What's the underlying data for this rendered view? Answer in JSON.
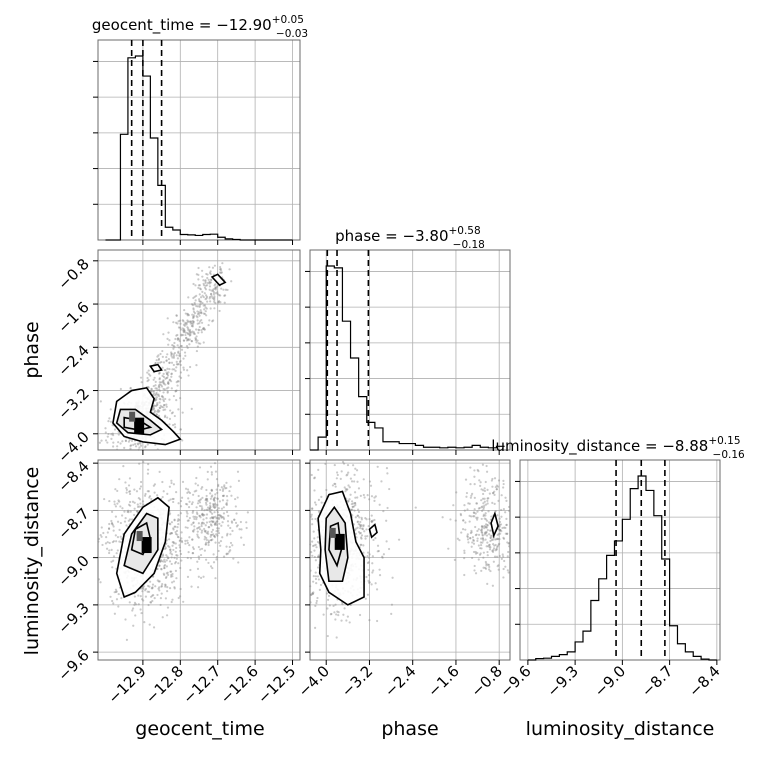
{
  "chart_data": {
    "type": "corner",
    "parameters": [
      "geocent_time",
      "phase",
      "luminosity_distance"
    ],
    "titles": [
      {
        "param": "geocent_time",
        "median": "−12.90",
        "plus": "+0.05",
        "minus": "−0.03"
      },
      {
        "param": "phase",
        "median": "−3.80",
        "plus": "+0.58",
        "minus": "−0.18"
      },
      {
        "param": "luminosity_distance",
        "median": "−8.88",
        "plus": "+0.15",
        "minus": "−0.16"
      }
    ],
    "axes": {
      "geocent_time": {
        "range": [
          -13.02,
          -12.48
        ],
        "ticks": [
          -12.9,
          -12.8,
          -12.7,
          -12.6,
          -12.5
        ],
        "tick_labels": [
          "−12.9",
          "−12.8",
          "−12.7",
          "−12.6",
          "−12.5"
        ]
      },
      "phase": {
        "range": [
          -4.3,
          -0.6
        ],
        "ticks": [
          -4.0,
          -3.2,
          -2.4,
          -1.6,
          -0.8
        ],
        "tick_labels": [
          "−4.0",
          "−3.2",
          "−2.4",
          "−1.6",
          "−0.8"
        ]
      },
      "luminosity_distance": {
        "range": [
          -9.65,
          -8.38
        ],
        "ticks": [
          -9.6,
          -9.3,
          -9.0,
          -8.7,
          -8.4
        ],
        "tick_labels": [
          "−9.6",
          "−9.3",
          "−9.0",
          "−8.7",
          "−8.4"
        ]
      }
    },
    "quantiles": {
      "geocent_time": [
        -12.93,
        -12.9,
        -12.85
      ],
      "phase": [
        -3.98,
        -3.8,
        -3.22
      ],
      "luminosity_distance": [
        -9.04,
        -8.88,
        -8.73
      ]
    },
    "histograms": {
      "geocent_time": {
        "edges": [
          -13.0,
          -12.98,
          -12.96,
          -12.94,
          -12.92,
          -12.9,
          -12.88,
          -12.86,
          -12.84,
          -12.82,
          -12.8,
          -12.78,
          -12.76,
          -12.74,
          -12.72,
          -12.7,
          -12.68,
          -12.66,
          -12.64,
          -12.62,
          -12.6,
          -12.58,
          -12.56,
          -12.54,
          -12.52,
          -12.5
        ],
        "counts": [
          0,
          0,
          580,
          1000,
          1010,
          900,
          560,
          300,
          70,
          55,
          30,
          28,
          25,
          30,
          32,
          15,
          6,
          3,
          0,
          0,
          0,
          0,
          0,
          0,
          0
        ]
      },
      "phase": {
        "edges": [
          -4.3,
          -4.15,
          -4.0,
          -3.85,
          -3.7,
          -3.55,
          -3.4,
          -3.25,
          -3.1,
          -2.95,
          -2.8,
          -2.65,
          -2.5,
          -2.35,
          -2.2,
          -2.05,
          -1.9,
          -1.75,
          -1.6,
          -1.45,
          -1.3,
          -1.15,
          -1.0,
          -0.85,
          -0.7
        ],
        "counts": [
          0,
          70,
          1000,
          990,
          700,
          500,
          290,
          150,
          120,
          45,
          45,
          35,
          35,
          25,
          15,
          15,
          12,
          15,
          12,
          15,
          25,
          15,
          12,
          20
        ]
      },
      "luminosity_distance": {
        "edges": [
          -9.6,
          -9.55,
          -9.5,
          -9.45,
          -9.4,
          -9.35,
          -9.3,
          -9.25,
          -9.2,
          -9.15,
          -9.1,
          -9.05,
          -9.0,
          -8.95,
          -8.9,
          -8.85,
          -8.8,
          -8.75,
          -8.7,
          -8.65,
          -8.6,
          -8.55,
          -8.5,
          -8.45,
          -8.4
        ],
        "counts": [
          0,
          8,
          10,
          20,
          30,
          45,
          100,
          160,
          330,
          450,
          580,
          660,
          780,
          950,
          1020,
          940,
          800,
          560,
          190,
          90,
          45,
          20,
          5,
          0
        ]
      }
    },
    "contours": {
      "phase_vs_geocent_time": [
        {
          "level": "outer",
          "points": [
            [
              -12.97,
              -3.4
            ],
            [
              -12.93,
              -3.2
            ],
            [
              -12.89,
              -3.15
            ],
            [
              -12.87,
              -3.35
            ],
            [
              -12.88,
              -3.6
            ],
            [
              -12.85,
              -3.75
            ],
            [
              -12.82,
              -3.95
            ],
            [
              -12.8,
              -4.1
            ],
            [
              -12.84,
              -4.2
            ],
            [
              -12.9,
              -4.15
            ],
            [
              -12.95,
              -4.05
            ],
            [
              -12.98,
              -3.8
            ]
          ]
        },
        {
          "level": "middle",
          "points": [
            [
              -12.96,
              -3.55
            ],
            [
              -12.92,
              -3.55
            ],
            [
              -12.88,
              -3.75
            ],
            [
              -12.85,
              -3.92
            ],
            [
              -12.88,
              -4.02
            ],
            [
              -12.94,
              -3.98
            ],
            [
              -12.97,
              -3.8
            ]
          ]
        },
        {
          "level": "inner",
          "points": [
            [
              -12.95,
              -3.7
            ],
            [
              -12.91,
              -3.75
            ],
            [
              -12.88,
              -3.88
            ],
            [
              -12.91,
              -3.93
            ],
            [
              -12.95,
              -3.88
            ]
          ]
        },
        {
          "level": "island",
          "points": [
            [
              -12.715,
              -1.1
            ],
            [
              -12.7,
              -1.05
            ],
            [
              -12.68,
              -1.2
            ],
            [
              -12.695,
              -1.25
            ]
          ]
        },
        {
          "level": "island",
          "points": [
            [
              -12.88,
              -2.75
            ],
            [
              -12.86,
              -2.72
            ],
            [
              -12.85,
              -2.82
            ],
            [
              -12.87,
              -2.85
            ]
          ]
        }
      ],
      "luminosity_distance_vs_geocent_time": [
        {
          "level": "outer",
          "points": [
            [
              -12.97,
              -9.1
            ],
            [
              -12.95,
              -8.85
            ],
            [
              -12.9,
              -8.68
            ],
            [
              -12.86,
              -8.62
            ],
            [
              -12.83,
              -8.68
            ],
            [
              -12.84,
              -8.9
            ],
            [
              -12.87,
              -9.1
            ],
            [
              -12.92,
              -9.22
            ],
            [
              -12.95,
              -9.25
            ]
          ]
        },
        {
          "level": "middle",
          "points": [
            [
              -12.95,
              -9.05
            ],
            [
              -12.93,
              -8.85
            ],
            [
              -12.89,
              -8.72
            ],
            [
              -12.86,
              -8.75
            ],
            [
              -12.86,
              -8.95
            ],
            [
              -12.9,
              -9.1
            ]
          ]
        },
        {
          "level": "inner",
          "points": [
            [
              -12.93,
              -8.95
            ],
            [
              -12.92,
              -8.82
            ],
            [
              -12.89,
              -8.78
            ],
            [
              -12.88,
              -8.88
            ],
            [
              -12.9,
              -8.98
            ]
          ]
        }
      ],
      "luminosity_distance_vs_phase": [
        {
          "level": "outer",
          "points": [
            [
              -4.1,
              -8.95
            ],
            [
              -4.15,
              -8.75
            ],
            [
              -3.95,
              -8.6
            ],
            [
              -3.7,
              -8.58
            ],
            [
              -3.55,
              -8.72
            ],
            [
              -3.45,
              -8.9
            ],
            [
              -3.3,
              -9.0
            ],
            [
              -3.3,
              -9.25
            ],
            [
              -3.6,
              -9.3
            ],
            [
              -3.95,
              -9.22
            ],
            [
              -4.12,
              -9.1
            ]
          ]
        },
        {
          "level": "middle",
          "points": [
            [
              -4.02,
              -8.95
            ],
            [
              -4.0,
              -8.75
            ],
            [
              -3.85,
              -8.68
            ],
            [
              -3.65,
              -8.78
            ],
            [
              -3.6,
              -9.0
            ],
            [
              -3.7,
              -9.15
            ],
            [
              -3.95,
              -9.15
            ]
          ]
        },
        {
          "level": "inner",
          "points": [
            [
              -3.95,
              -8.95
            ],
            [
              -3.92,
              -8.8
            ],
            [
              -3.78,
              -8.78
            ],
            [
              -3.72,
              -8.95
            ],
            [
              -3.8,
              -9.05
            ]
          ]
        },
        {
          "level": "island",
          "points": [
            [
              -3.2,
              -8.82
            ],
            [
              -3.1,
              -8.79
            ],
            [
              -3.06,
              -8.84
            ],
            [
              -3.16,
              -8.87
            ]
          ]
        },
        {
          "level": "island",
          "points": [
            [
              -0.95,
              -8.78
            ],
            [
              -0.88,
              -8.72
            ],
            [
              -0.82,
              -8.8
            ],
            [
              -0.9,
              -8.86
            ]
          ]
        }
      ]
    },
    "density_clouds": {
      "phase_vs_geocent_time": {
        "core": [
          -12.91,
          -3.85
        ],
        "spread": [
          0.04,
          0.25
        ],
        "trend_to": [
          -12.7,
          -1.05
        ]
      },
      "luminosity_distance_vs_geocent_time": {
        "core": [
          -12.89,
          -8.92
        ],
        "spread": [
          0.05,
          0.2
        ],
        "extra_core": [
          -12.72,
          -8.75
        ]
      },
      "luminosity_distance_vs_phase": {
        "core": [
          -3.75,
          -8.9
        ],
        "spread": [
          0.35,
          0.22
        ],
        "extra_core": [
          -1.0,
          -8.8
        ]
      }
    }
  }
}
